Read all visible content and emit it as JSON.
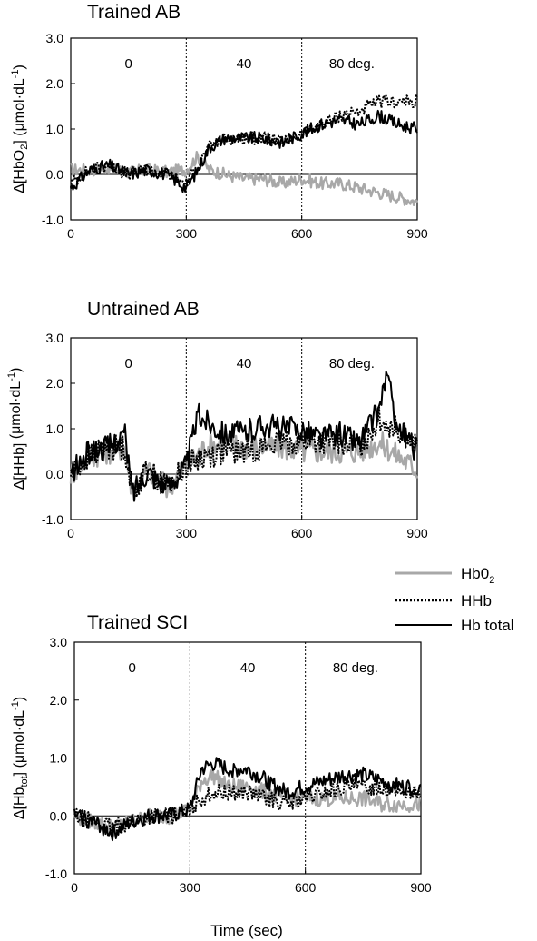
{
  "figure": {
    "xlabel": "Time (sec)"
  },
  "legend": {
    "items": [
      {
        "label": "Hb0",
        "sub": "2",
        "color": "#a8a8a8",
        "style": "solid"
      },
      {
        "label": "HHb",
        "sub": "",
        "color": "#000000",
        "style": "dotted"
      },
      {
        "label": "Hb total",
        "sub": "",
        "color": "#000000",
        "style": "solid"
      }
    ]
  },
  "chart_data": [
    {
      "type": "line",
      "title": "Trained AB",
      "ylabel_pre": "Δ[HbO",
      "ylabel_sub": "2",
      "ylabel_post": "] (μmol·dL",
      "ylabel_sup": "-1",
      "ylabel_end": ")",
      "xlim": [
        0,
        900
      ],
      "ylim": [
        -1.0,
        3.0
      ],
      "xticks": [
        "0",
        "300",
        "600",
        "900"
      ],
      "yticks": [
        "3.0",
        "2.0",
        "1.0",
        "0.0",
        "-1.0"
      ],
      "phase_lines": [
        300,
        600
      ],
      "phase_labels": [
        {
          "x": 150,
          "text": "0"
        },
        {
          "x": 450,
          "text": "40"
        },
        {
          "x": 730,
          "text": "80   deg."
        }
      ],
      "series": [
        {
          "name": "Hb0₂",
          "color": "#a8a8a8",
          "style": "solid",
          "x": [
            0,
            50,
            100,
            150,
            200,
            250,
            300,
            330,
            360,
            400,
            450,
            500,
            550,
            600,
            650,
            700,
            750,
            800,
            850,
            900
          ],
          "y": [
            0.1,
            0.1,
            0.15,
            0.05,
            0.1,
            0.05,
            0.1,
            0.4,
            0.1,
            0.0,
            -0.1,
            -0.1,
            -0.2,
            -0.1,
            -0.2,
            -0.2,
            -0.3,
            -0.4,
            -0.5,
            -0.6
          ]
        },
        {
          "name": "HHb",
          "color": "#000000",
          "style": "dotted",
          "x": [
            0,
            50,
            100,
            150,
            200,
            250,
            300,
            330,
            360,
            400,
            450,
            500,
            550,
            600,
            650,
            700,
            750,
            800,
            850,
            900
          ],
          "y": [
            -0.2,
            0.1,
            0.2,
            0.0,
            0.1,
            0.0,
            -0.2,
            0.2,
            0.6,
            0.8,
            0.8,
            0.8,
            0.7,
            0.9,
            1.1,
            1.3,
            1.4,
            1.6,
            1.6,
            1.6
          ]
        },
        {
          "name": "Hb total",
          "color": "#000000",
          "style": "solid",
          "x": [
            0,
            50,
            100,
            150,
            200,
            250,
            300,
            330,
            360,
            400,
            450,
            500,
            550,
            600,
            650,
            700,
            750,
            800,
            850,
            900
          ],
          "y": [
            -0.3,
            0.1,
            0.2,
            0.0,
            0.1,
            0.0,
            -0.3,
            0.1,
            0.6,
            0.8,
            0.8,
            0.8,
            0.7,
            0.9,
            1.1,
            1.2,
            1.1,
            1.3,
            1.1,
            1.0
          ]
        }
      ]
    },
    {
      "type": "line",
      "title": "Untrained AB",
      "ylabel_pre": "Δ[HHb]",
      "ylabel_sub": "",
      "ylabel_post": " (μmol·dL",
      "ylabel_sup": "-1",
      "ylabel_end": ")",
      "xlim": [
        0,
        900
      ],
      "ylim": [
        -1.0,
        3.0
      ],
      "xticks": [
        "0",
        "300",
        "600",
        "900"
      ],
      "yticks": [
        "3.0",
        "2.0",
        "1.0",
        "0.0",
        "-1.0"
      ],
      "phase_lines": [
        300,
        600
      ],
      "phase_labels": [
        {
          "x": 150,
          "text": "0"
        },
        {
          "x": 450,
          "text": "40"
        },
        {
          "x": 730,
          "text": "80   deg."
        }
      ],
      "series": [
        {
          "name": "Hb0₂",
          "color": "#a8a8a8",
          "style": "solid",
          "x": [
            0,
            50,
            100,
            140,
            160,
            200,
            250,
            280,
            300,
            350,
            400,
            450,
            500,
            550,
            600,
            650,
            700,
            750,
            800,
            850,
            900
          ],
          "y": [
            0.0,
            0.4,
            0.5,
            0.6,
            -0.4,
            0.1,
            -0.3,
            0.0,
            0.2,
            0.6,
            0.7,
            0.6,
            0.6,
            0.6,
            0.5,
            0.5,
            0.5,
            0.5,
            0.7,
            0.4,
            0.1
          ]
        },
        {
          "name": "HHb",
          "color": "#000000",
          "style": "dotted",
          "x": [
            0,
            50,
            100,
            140,
            160,
            200,
            250,
            280,
            300,
            350,
            400,
            450,
            500,
            550,
            600,
            650,
            700,
            750,
            800,
            850,
            900
          ],
          "y": [
            0.0,
            0.4,
            0.6,
            0.6,
            -0.4,
            0.1,
            -0.3,
            0.0,
            0.2,
            0.4,
            0.5,
            0.5,
            0.6,
            0.7,
            0.7,
            0.7,
            0.7,
            0.6,
            1.2,
            1.0,
            0.6
          ]
        },
        {
          "name": "Hb total",
          "color": "#000000",
          "style": "solid",
          "x": [
            0,
            50,
            100,
            140,
            160,
            200,
            250,
            280,
            300,
            330,
            350,
            400,
            450,
            500,
            550,
            600,
            650,
            700,
            750,
            800,
            820,
            850,
            900
          ],
          "y": [
            0.0,
            0.5,
            0.6,
            0.9,
            -0.4,
            0.1,
            -0.3,
            0.0,
            0.2,
            1.3,
            1.2,
            0.9,
            0.9,
            1.1,
            1.0,
            1.0,
            0.8,
            0.9,
            0.7,
            1.4,
            2.2,
            1.0,
            0.5
          ]
        }
      ]
    },
    {
      "type": "line",
      "title": "Trained SCI",
      "ylabel_pre": "Δ[Hb",
      "ylabel_sub": "tot",
      "ylabel_post": "] (μmol·dL",
      "ylabel_sup": "-1",
      "ylabel_end": ")",
      "xlim": [
        0,
        900
      ],
      "ylim": [
        -1.0,
        3.0
      ],
      "xticks": [
        "0",
        "300",
        "600",
        "900"
      ],
      "yticks": [
        "3.0",
        "2.0",
        "1.0",
        "0.0",
        "-1.0"
      ],
      "phase_lines": [
        300,
        600
      ],
      "phase_labels": [
        {
          "x": 150,
          "text": "0"
        },
        {
          "x": 450,
          "text": "40"
        },
        {
          "x": 730,
          "text": "80   deg."
        }
      ],
      "series": [
        {
          "name": "Hb0₂",
          "color": "#a8a8a8",
          "style": "solid",
          "x": [
            0,
            50,
            100,
            150,
            200,
            250,
            300,
            330,
            360,
            400,
            450,
            500,
            550,
            600,
            650,
            700,
            750,
            800,
            850,
            900
          ],
          "y": [
            0.0,
            -0.1,
            -0.2,
            -0.1,
            0.0,
            0.0,
            0.1,
            0.6,
            0.7,
            0.5,
            0.5,
            0.4,
            0.3,
            0.3,
            0.3,
            0.3,
            0.3,
            0.2,
            0.2,
            0.2
          ]
        },
        {
          "name": "HHb",
          "color": "#000000",
          "style": "dotted",
          "x": [
            0,
            50,
            100,
            150,
            200,
            250,
            300,
            330,
            360,
            400,
            450,
            500,
            550,
            600,
            650,
            700,
            750,
            800,
            850,
            900
          ],
          "y": [
            0.0,
            -0.1,
            -0.2,
            -0.1,
            0.0,
            0.0,
            0.1,
            0.3,
            0.4,
            0.4,
            0.4,
            0.3,
            0.2,
            0.3,
            0.4,
            0.5,
            0.5,
            0.5,
            0.4,
            0.4
          ]
        },
        {
          "name": "Hb total",
          "color": "#000000",
          "style": "solid",
          "x": [
            0,
            50,
            100,
            150,
            200,
            250,
            300,
            330,
            360,
            400,
            450,
            500,
            550,
            600,
            650,
            700,
            750,
            800,
            850,
            900
          ],
          "y": [
            0.0,
            -0.1,
            -0.3,
            -0.1,
            0.0,
            0.0,
            0.1,
            0.8,
            0.9,
            0.8,
            0.8,
            0.6,
            0.4,
            0.5,
            0.6,
            0.7,
            0.7,
            0.6,
            0.5,
            0.5
          ]
        }
      ]
    }
  ]
}
